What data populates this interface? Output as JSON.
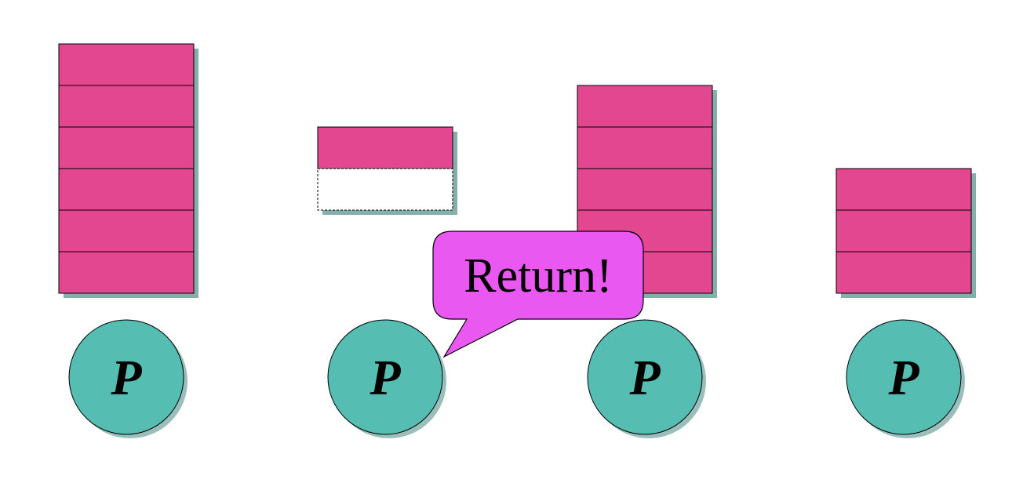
{
  "colors": {
    "block": "#e2478f",
    "empty_block": "#ffffff",
    "processor": "#55bdb2",
    "callout": "#ea58f2",
    "shadow": "#1f6f66",
    "outline": "#000000"
  },
  "processors": [
    {
      "label": "P",
      "filled_blocks": 6,
      "empty_blocks": 0
    },
    {
      "label": "P",
      "filled_blocks": 1,
      "empty_blocks": 1
    },
    {
      "label": "P",
      "filled_blocks": 5,
      "empty_blocks": 0
    },
    {
      "label": "P",
      "filled_blocks": 3,
      "empty_blocks": 0
    }
  ],
  "callout": {
    "text": "Return!",
    "icon": "speech-bubble-icon"
  }
}
